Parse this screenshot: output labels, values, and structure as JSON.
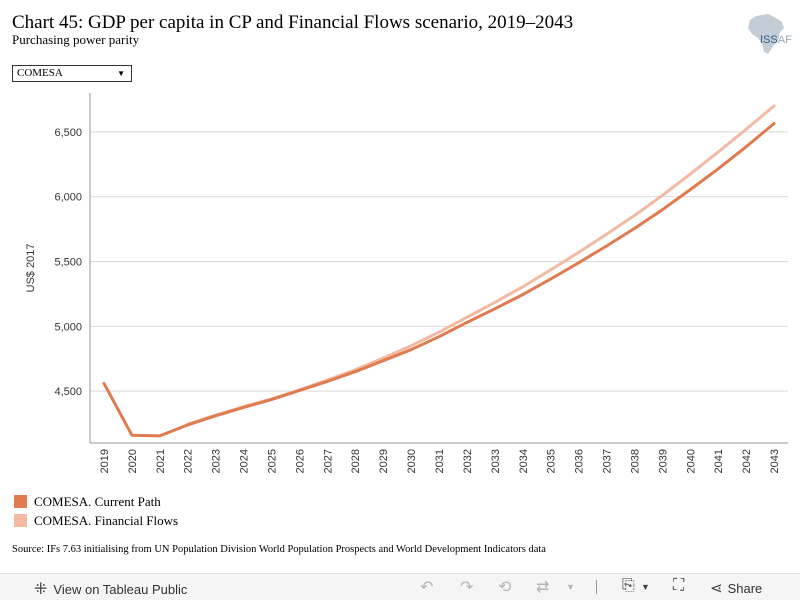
{
  "header": {
    "title": "Chart 45: GDP per capita in CP and Financial Flows scenario, 2019–2043",
    "subtitle": "Purchasing power parity",
    "logo_text_main": "ISS",
    "logo_text_rest": "AF"
  },
  "filter": {
    "selected": "COMESA"
  },
  "chart_data": {
    "type": "line",
    "title": "Chart 45: GDP per capita in CP and Financial Flows scenario, 2019–2043",
    "subtitle": "Purchasing power parity",
    "xlabel": "",
    "ylabel": "US$ 2017",
    "x": [
      2019,
      2020,
      2021,
      2022,
      2023,
      2024,
      2025,
      2026,
      2027,
      2028,
      2029,
      2030,
      2031,
      2032,
      2033,
      2034,
      2035,
      2036,
      2037,
      2038,
      2039,
      2040,
      2041,
      2042,
      2043
    ],
    "ylim": [
      4100,
      6800
    ],
    "yticks": [
      4500,
      5000,
      5500,
      6000,
      6500
    ],
    "ytick_labels": [
      "4,500",
      "5,000",
      "5,500",
      "6,000",
      "6,500"
    ],
    "grid": true,
    "legend_position": "bottom-left",
    "series": [
      {
        "name": "COMESA. Current Path",
        "color": "#e07a4f",
        "values": [
          4560,
          4160,
          4155,
          4240,
          4310,
          4375,
          4435,
          4505,
          4575,
          4650,
          4735,
          4820,
          4920,
          5030,
          5135,
          5245,
          5365,
          5490,
          5620,
          5755,
          5900,
          6055,
          6215,
          6385,
          6565
        ]
      },
      {
        "name": "COMESA. Financial Flows",
        "color": "#f2b9a3",
        "values": [
          null,
          null,
          null,
          4245,
          4315,
          4380,
          4440,
          4510,
          4585,
          4665,
          4755,
          4850,
          4955,
          5070,
          5185,
          5305,
          5435,
          5570,
          5710,
          5855,
          6010,
          6175,
          6345,
          6520,
          6700
        ]
      }
    ]
  },
  "legend": {
    "items": [
      {
        "label": "COMESA. Current Path",
        "color": "#e07a4f"
      },
      {
        "label": "COMESA. Financial Flows",
        "color": "#f2b9a3"
      }
    ]
  },
  "source": "Source: IFs 7.63 initialising from UN Population Division World Population Prospects and World Development Indicators data",
  "toolbar": {
    "view_label": "View on Tableau Public",
    "share_label": "Share"
  }
}
